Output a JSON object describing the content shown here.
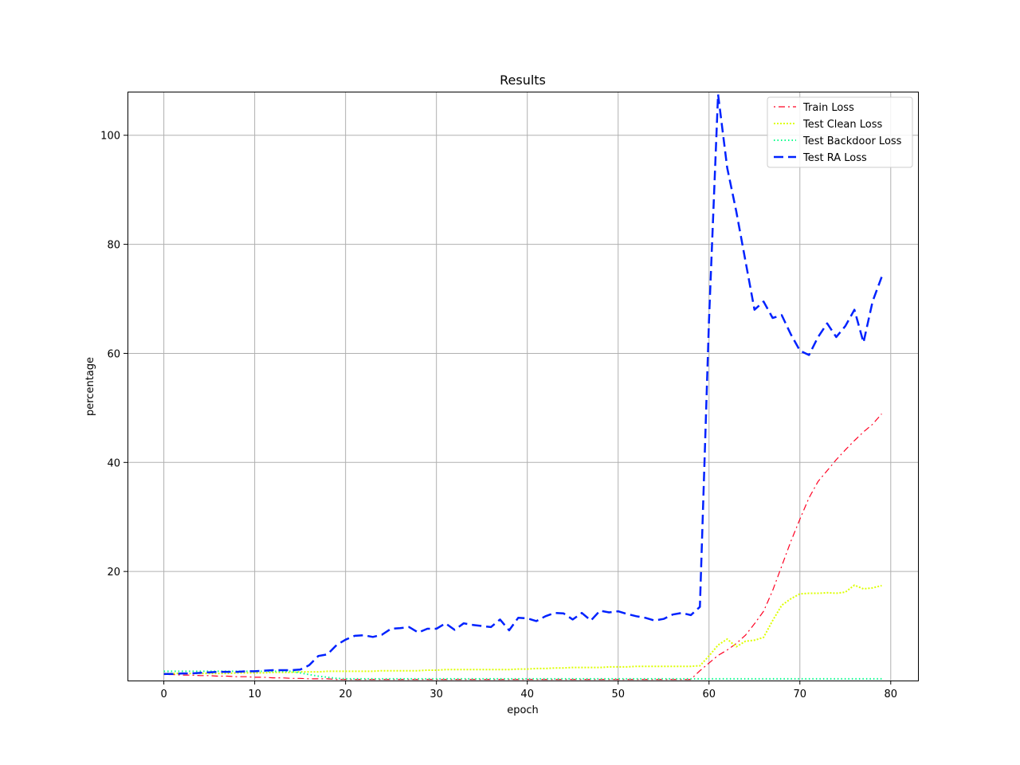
{
  "chart_data": {
    "type": "line",
    "title": "Results",
    "xlabel": "epoch",
    "ylabel": "percentage",
    "xlim": [
      -4,
      83
    ],
    "ylim": [
      0,
      108
    ],
    "xticks": [
      0,
      10,
      20,
      30,
      40,
      50,
      60,
      70,
      80
    ],
    "yticks": [
      20,
      40,
      60,
      80,
      100
    ],
    "grid": true,
    "legend_position": "top-right",
    "x": [
      0,
      1,
      2,
      3,
      4,
      5,
      6,
      7,
      8,
      9,
      10,
      11,
      12,
      13,
      14,
      15,
      16,
      17,
      18,
      19,
      20,
      21,
      22,
      23,
      24,
      25,
      26,
      27,
      28,
      29,
      30,
      31,
      32,
      33,
      34,
      35,
      36,
      37,
      38,
      39,
      40,
      41,
      42,
      43,
      44,
      45,
      46,
      47,
      48,
      49,
      50,
      51,
      52,
      53,
      54,
      55,
      56,
      57,
      58,
      59,
      60,
      61,
      62,
      63,
      64,
      65,
      66,
      67,
      68,
      69,
      70,
      71,
      72,
      73,
      74,
      75,
      76,
      77,
      78,
      79
    ],
    "series": [
      {
        "name": "Train Loss",
        "color": "#ff0022",
        "dash": "2,4,8,4",
        "width": 1.2,
        "values": [
          1.1,
          1.1,
          1.0,
          1.0,
          0.9,
          0.9,
          0.8,
          0.8,
          0.7,
          0.7,
          0.6,
          0.6,
          0.5,
          0.5,
          0.4,
          0.4,
          0.3,
          0.3,
          0.3,
          0.2,
          0.2,
          0.2,
          0.2,
          0.2,
          0.2,
          0.2,
          0.2,
          0.2,
          0.2,
          0.2,
          0.2,
          0.2,
          0.2,
          0.2,
          0.2,
          0.2,
          0.2,
          0.2,
          0.2,
          0.2,
          0.2,
          0.2,
          0.2,
          0.2,
          0.2,
          0.2,
          0.2,
          0.2,
          0.2,
          0.2,
          0.2,
          0.2,
          0.2,
          0.2,
          0.2,
          0.2,
          0.2,
          0.2,
          0.2,
          1.8,
          3.2,
          4.6,
          5.6,
          6.8,
          8.3,
          10.4,
          12.7,
          16.5,
          21.0,
          25.5,
          29.6,
          33.5,
          36.5,
          38.5,
          40.5,
          42.3,
          44.0,
          45.6,
          47.0,
          48.9
        ]
      },
      {
        "name": "Test Clean Loss",
        "color": "#ddff00",
        "dash": "2,2",
        "width": 2,
        "values": [
          1.3,
          1.3,
          1.3,
          1.3,
          1.3,
          1.3,
          1.3,
          1.3,
          1.4,
          1.4,
          1.4,
          1.4,
          1.5,
          1.5,
          1.5,
          1.6,
          1.6,
          1.6,
          1.7,
          1.7,
          1.7,
          1.7,
          1.7,
          1.7,
          1.8,
          1.8,
          1.8,
          1.8,
          1.8,
          1.9,
          1.9,
          2.0,
          2.0,
          2.0,
          2.0,
          2.0,
          2.0,
          2.0,
          2.0,
          2.1,
          2.1,
          2.2,
          2.2,
          2.3,
          2.3,
          2.4,
          2.4,
          2.4,
          2.4,
          2.5,
          2.5,
          2.5,
          2.6,
          2.6,
          2.6,
          2.6,
          2.6,
          2.6,
          2.6,
          2.7,
          4.5,
          6.5,
          7.6,
          6.2,
          7.2,
          7.4,
          7.9,
          11.0,
          13.8,
          15.0,
          15.9,
          16.0,
          16.0,
          16.1,
          16.0,
          16.2,
          17.5,
          16.8,
          17.0,
          17.4
        ]
      },
      {
        "name": "Test Backdoor Loss",
        "color": "#00ff88",
        "dash": "1.5,3",
        "width": 2,
        "values": [
          1.7,
          1.7,
          1.7,
          1.7,
          1.7,
          1.7,
          1.7,
          1.7,
          1.7,
          1.7,
          1.7,
          1.7,
          1.7,
          1.7,
          1.7,
          1.4,
          1.1,
          0.8,
          0.6,
          0.4,
          0.3,
          0.3,
          0.3,
          0.3,
          0.3,
          0.3,
          0.3,
          0.3,
          0.3,
          0.3,
          0.3,
          0.3,
          0.3,
          0.3,
          0.3,
          0.3,
          0.3,
          0.3,
          0.3,
          0.3,
          0.3,
          0.3,
          0.3,
          0.3,
          0.3,
          0.3,
          0.3,
          0.3,
          0.3,
          0.3,
          0.3,
          0.3,
          0.3,
          0.3,
          0.3,
          0.3,
          0.3,
          0.3,
          0.3,
          0.3,
          0.3,
          0.3,
          0.3,
          0.3,
          0.3,
          0.3,
          0.3,
          0.3,
          0.3,
          0.3,
          0.3,
          0.3,
          0.3,
          0.3,
          0.3,
          0.3,
          0.3,
          0.3,
          0.3,
          0.3
        ]
      },
      {
        "name": "Test RA Loss",
        "color": "#0022ff",
        "dash": "12,6",
        "width": 2.5,
        "values": [
          1.2,
          1.2,
          1.3,
          1.3,
          1.4,
          1.5,
          1.6,
          1.6,
          1.6,
          1.7,
          1.7,
          1.8,
          1.9,
          1.9,
          1.9,
          2.0,
          2.8,
          4.5,
          4.8,
          6.5,
          7.5,
          8.2,
          8.3,
          8.0,
          8.4,
          9.5,
          9.6,
          9.8,
          8.8,
          9.5,
          9.5,
          10.5,
          9.3,
          10.5,
          10.2,
          10.0,
          9.8,
          11.2,
          9.2,
          11.5,
          11.4,
          10.9,
          11.8,
          12.4,
          12.3,
          11.2,
          12.4,
          11.0,
          12.8,
          12.5,
          12.7,
          12.2,
          11.8,
          11.5,
          11.0,
          11.3,
          12.1,
          12.4,
          12.0,
          13.5,
          66.0,
          107.5,
          94.0,
          86.0,
          77.0,
          68.0,
          69.5,
          66.5,
          67.0,
          63.5,
          60.5,
          59.7,
          63.0,
          65.5,
          63.0,
          65.0,
          68.0,
          62.0,
          69.5,
          74.0
        ]
      }
    ]
  }
}
